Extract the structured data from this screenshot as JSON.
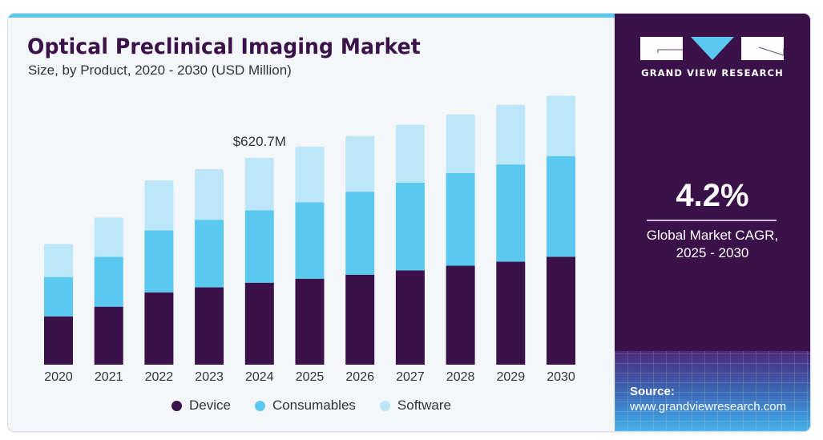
{
  "header": {
    "title": "Optical Preclinical Imaging Market",
    "subtitle": "Size, by Product, 2020 - 2030 (USD Million)"
  },
  "colors": {
    "device": "#3a1148",
    "consumables": "#5bc8f0",
    "software": "#bde6f8",
    "accent": "#5bc8f0",
    "panel": "#3a1148"
  },
  "chart_data": {
    "type": "bar",
    "stacked": true,
    "title": "Optical Preclinical Imaging Market",
    "subtitle": "Size, by Product, 2020 - 2030 (USD Million)",
    "xlabel": "",
    "ylabel": "USD Million",
    "categories": [
      "2020",
      "2021",
      "2022",
      "2023",
      "2024",
      "2025",
      "2026",
      "2027",
      "2028",
      "2029",
      "2030"
    ],
    "series": [
      {
        "name": "Device",
        "color": "#3a1148",
        "values": [
          145,
          174,
          217,
          232,
          246,
          258,
          270,
          283,
          297,
          309,
          324
        ]
      },
      {
        "name": "Consumables",
        "color": "#5bc8f0",
        "values": [
          118,
          150,
          186,
          203,
          217,
          229,
          249,
          263,
          278,
          292,
          302
        ]
      },
      {
        "name": "Software",
        "color": "#bde6f8",
        "values": [
          99,
          118,
          150,
          152,
          157.7,
          167,
          167,
          174,
          176,
          179,
          181
        ]
      }
    ],
    "ylim": [
      0,
      825
    ],
    "grid": false,
    "y_axis_visible": false,
    "annotations": [
      {
        "category": "2024",
        "text": "$620.7M"
      }
    ],
    "legend": {
      "position": "bottom",
      "entries": [
        "Device",
        "Consumables",
        "Software"
      ]
    }
  },
  "side_panel": {
    "brand": "GRAND VIEW RESEARCH",
    "cagr_value": "4.2%",
    "cagr_label_line1": "Global Market CAGR,",
    "cagr_label_line2": "2025 - 2030",
    "source_label": "Source:",
    "source_url": "www.grandviewresearch.com"
  }
}
